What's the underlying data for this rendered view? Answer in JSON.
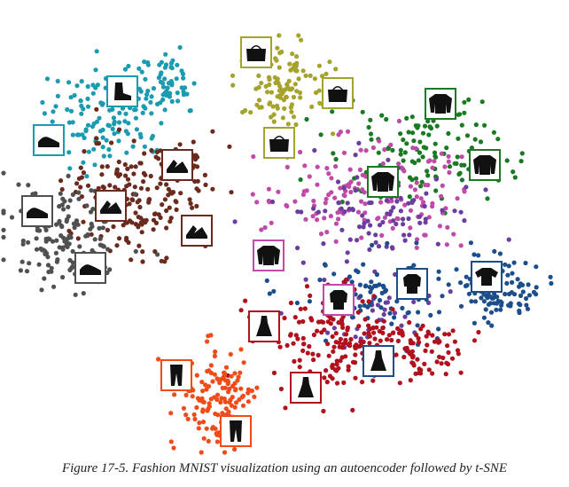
{
  "caption": "Figure 17-5. Fashion MNIST visualization using an autoencoder followed by t-SNE",
  "chart_data": {
    "type": "scatter",
    "title": "",
    "xlabel": "",
    "ylabel": "",
    "grid": false,
    "axes_visible": false,
    "legend": "none",
    "series": [
      {
        "class": "ankle-boot",
        "color": "#1a9bb0",
        "clusters": [
          {
            "cx": 120,
            "cy": 130,
            "rx": 70,
            "ry": 55,
            "n": 120
          },
          {
            "cx": 185,
            "cy": 95,
            "rx": 40,
            "ry": 40,
            "n": 60
          }
        ]
      },
      {
        "class": "sandal",
        "color": "#6b2a1e",
        "clusters": [
          {
            "cx": 150,
            "cy": 225,
            "rx": 80,
            "ry": 60,
            "n": 170
          },
          {
            "cx": 200,
            "cy": 185,
            "rx": 40,
            "ry": 30,
            "n": 50
          }
        ]
      },
      {
        "class": "sneaker",
        "color": "#505050",
        "clusters": [
          {
            "cx": 75,
            "cy": 265,
            "rx": 65,
            "ry": 55,
            "n": 160
          }
        ]
      },
      {
        "class": "bag",
        "color": "#a5a32c",
        "clusters": [
          {
            "cx": 320,
            "cy": 95,
            "rx": 55,
            "ry": 55,
            "n": 110
          }
        ]
      },
      {
        "class": "pullover",
        "color": "#1a7a24",
        "clusters": [
          {
            "cx": 470,
            "cy": 170,
            "rx": 100,
            "ry": 60,
            "n": 130
          }
        ]
      },
      {
        "class": "coat",
        "color": "#c04aa8",
        "clusters": [
          {
            "cx": 420,
            "cy": 215,
            "rx": 120,
            "ry": 60,
            "n": 170
          }
        ]
      },
      {
        "class": "shirt",
        "color": "#6a3e9e",
        "clusters": [
          {
            "cx": 430,
            "cy": 240,
            "rx": 110,
            "ry": 50,
            "n": 90
          },
          {
            "cx": 430,
            "cy": 350,
            "rx": 60,
            "ry": 40,
            "n": 40
          }
        ]
      },
      {
        "class": "t-shirt",
        "color": "#1d4e8c",
        "clusters": [
          {
            "cx": 560,
            "cy": 325,
            "rx": 45,
            "ry": 35,
            "n": 110
          },
          {
            "cx": 420,
            "cy": 330,
            "rx": 90,
            "ry": 45,
            "n": 100
          }
        ]
      },
      {
        "class": "dress",
        "color": "#b1101c",
        "clusters": [
          {
            "cx": 385,
            "cy": 385,
            "rx": 85,
            "ry": 60,
            "n": 200
          },
          {
            "cx": 470,
            "cy": 390,
            "rx": 50,
            "ry": 30,
            "n": 60
          }
        ]
      },
      {
        "class": "trouser",
        "color": "#f04c1a",
        "clusters": [
          {
            "cx": 245,
            "cy": 450,
            "rx": 40,
            "ry": 60,
            "n": 140
          }
        ]
      }
    ],
    "thumbnails": [
      {
        "icon": "ankle-boot-icon",
        "x": 138,
        "y": 103,
        "border": "#1a9bb0"
      },
      {
        "icon": "sneaker-icon",
        "x": 55,
        "y": 158,
        "border": "#1a9bb0"
      },
      {
        "icon": "sandal-icon",
        "x": 200,
        "y": 186,
        "border": "#6b2a1e"
      },
      {
        "icon": "sandal-icon",
        "x": 125,
        "y": 232,
        "border": "#6b2a1e"
      },
      {
        "icon": "sneaker-icon",
        "x": 42,
        "y": 238,
        "border": "#505050"
      },
      {
        "icon": "sandal-icon",
        "x": 222,
        "y": 260,
        "border": "#6b2a1e"
      },
      {
        "icon": "sneaker-icon",
        "x": 102,
        "y": 302,
        "border": "#505050"
      },
      {
        "icon": "bag-icon",
        "x": 289,
        "y": 59,
        "border": "#a5a32c"
      },
      {
        "icon": "bag-icon",
        "x": 381,
        "y": 105,
        "border": "#a5a32c"
      },
      {
        "icon": "bag-icon",
        "x": 315,
        "y": 161,
        "border": "#a5a32c"
      },
      {
        "icon": "pullover-icon",
        "x": 497,
        "y": 117,
        "border": "#1a7a24"
      },
      {
        "icon": "pullover-icon",
        "x": 547,
        "y": 186,
        "border": "#1a7a24"
      },
      {
        "icon": "pullover-icon",
        "x": 432,
        "y": 205,
        "border": "#1a7a24"
      },
      {
        "icon": "pullover-icon",
        "x": 303,
        "y": 288,
        "border": "#c04aa8"
      },
      {
        "icon": "shirt-icon",
        "x": 465,
        "y": 320,
        "border": "#1d4e8c"
      },
      {
        "icon": "t-shirt-icon",
        "x": 549,
        "y": 312,
        "border": "#1d4e8c"
      },
      {
        "icon": "shirt-icon",
        "x": 382,
        "y": 338,
        "border": "#c04aa8"
      },
      {
        "icon": "dress-icon",
        "x": 298,
        "y": 368,
        "border": "#b1101c"
      },
      {
        "icon": "dress-icon",
        "x": 427,
        "y": 407,
        "border": "#1d4e8c"
      },
      {
        "icon": "dress-icon",
        "x": 345,
        "y": 437,
        "border": "#b1101c"
      },
      {
        "icon": "trouser-icon",
        "x": 199,
        "y": 423,
        "border": "#f04c1a"
      },
      {
        "icon": "trouser-icon",
        "x": 266,
        "y": 486,
        "border": "#f04c1a"
      }
    ]
  }
}
